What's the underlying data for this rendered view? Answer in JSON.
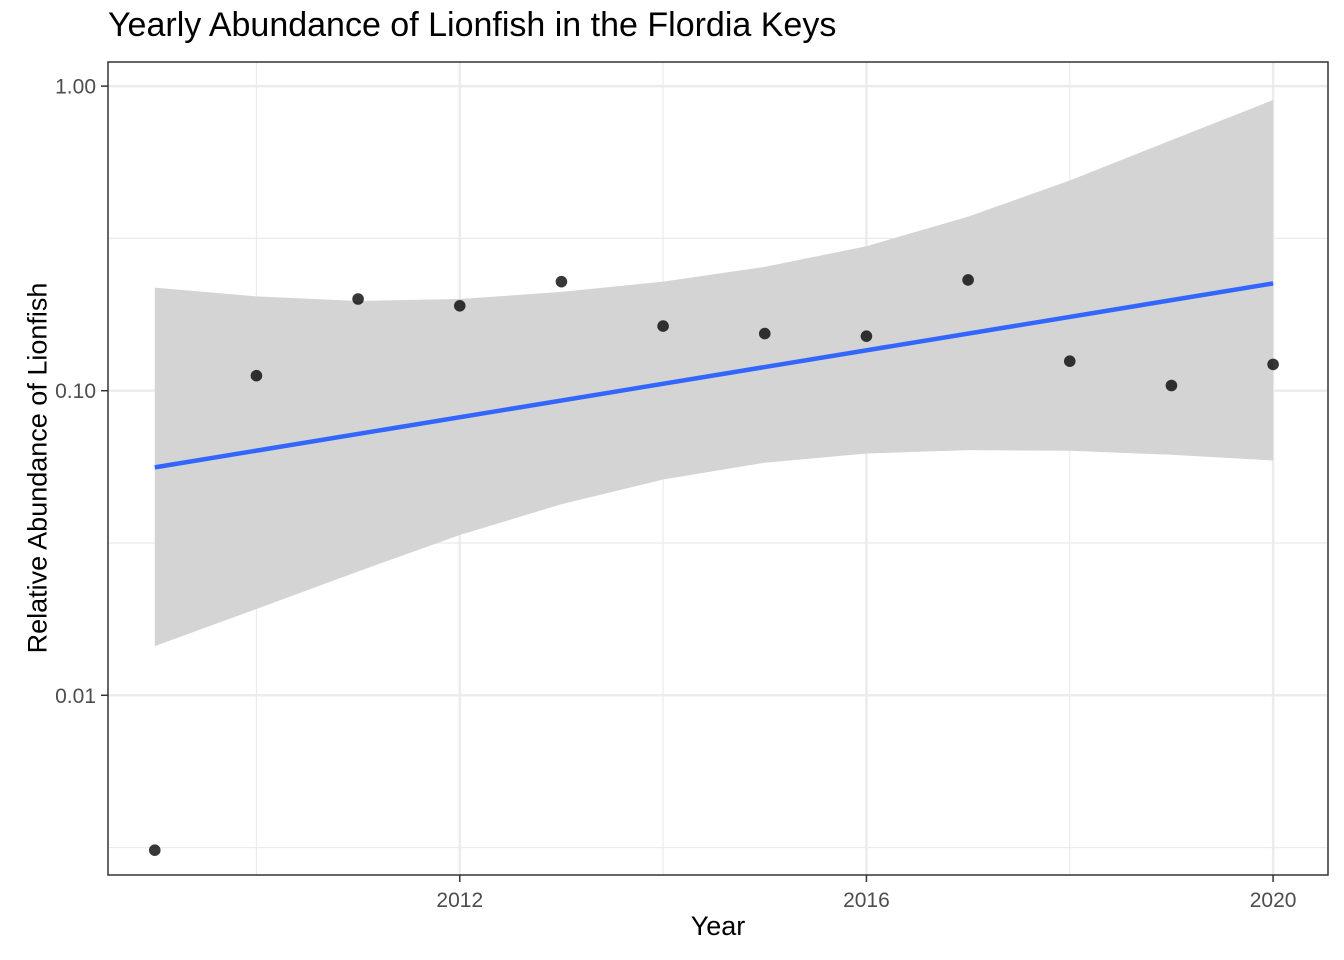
{
  "chart_data": {
    "type": "scatter",
    "title": "Yearly Abundance of Lionfish in the Flordia Keys",
    "xlabel": "Year",
    "ylabel": "Relative Abundance of Lionfish",
    "x_scale": "linear",
    "y_scale": "log10",
    "xlim": [
      2008.54,
      2020.54
    ],
    "ylim": [
      0.00257,
      1.2
    ],
    "x_ticks": [
      2012,
      2016,
      2020
    ],
    "x_tick_labels": [
      "2012",
      "2016",
      "2020"
    ],
    "y_ticks": [
      0.01,
      0.1,
      1.0
    ],
    "y_tick_labels": [
      "0.01",
      "0.10",
      "1.00"
    ],
    "grid": true,
    "legend": "none",
    "points": {
      "x": [
        2009,
        2010,
        2011,
        2012,
        2013,
        2014,
        2015,
        2016,
        2017,
        2018,
        2019,
        2020
      ],
      "y": [
        0.0031,
        0.112,
        0.2,
        0.19,
        0.228,
        0.163,
        0.154,
        0.151,
        0.231,
        0.125,
        0.104,
        0.122
      ],
      "color": "#000000"
    },
    "trend_line": {
      "x": [
        2009,
        2020
      ],
      "y": [
        0.056,
        0.225
      ],
      "color": "#3366FF"
    },
    "confidence_band": {
      "x": [
        2009,
        2010,
        2011,
        2012,
        2013,
        2014,
        2015,
        2016,
        2017,
        2018,
        2019,
        2020
      ],
      "lower": [
        0.0145,
        0.0192,
        0.0255,
        0.0336,
        0.0424,
        0.0511,
        0.058,
        0.0622,
        0.0638,
        0.0635,
        0.0616,
        0.059
      ],
      "upper": [
        0.218,
        0.204,
        0.197,
        0.2,
        0.211,
        0.228,
        0.255,
        0.298,
        0.373,
        0.49,
        0.665,
        0.9
      ],
      "color": "#d4d4d4"
    }
  }
}
